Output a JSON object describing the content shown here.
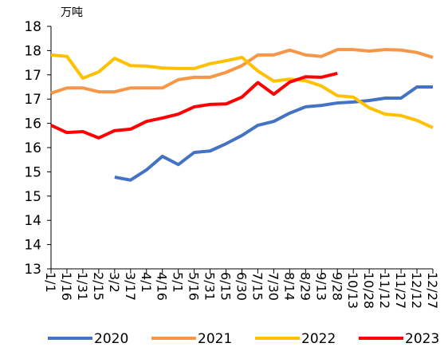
{
  "chart_data": {
    "type": "line",
    "unit_label": "万吨",
    "categories": [
      "1/1",
      "1/16",
      "1/31",
      "2/15",
      "3/2",
      "3/17",
      "4/1",
      "4/16",
      "5/1",
      "5/16",
      "5/31",
      "6/15",
      "6/30",
      "7/15",
      "7/30",
      "8/14",
      "8/29",
      "9/13",
      "9/28",
      "10/13",
      "10/28",
      "11/12",
      "11/27",
      "12/12",
      "12/27"
    ],
    "ylim": [
      13,
      18
    ],
    "yticks": [
      13,
      {
        "value": 13.5,
        "label": "14"
      },
      14,
      {
        "value": 14.5,
        "label": "15"
      },
      15,
      {
        "value": 15.5,
        "label": "16"
      },
      16,
      {
        "value": 16.5,
        "label": "17"
      },
      17,
      {
        "value": 17.5,
        "label": "18"
      },
      18
    ],
    "legend": "bottom",
    "series": [
      {
        "name": "2020",
        "color": "#4472c4",
        "values": [
          null,
          null,
          null,
          null,
          14.89,
          14.83,
          15.04,
          15.32,
          15.15,
          15.4,
          15.43,
          15.58,
          15.75,
          15.96,
          16.04,
          16.21,
          16.34,
          16.37,
          16.42,
          16.44,
          16.47,
          16.52,
          16.52,
          16.75,
          16.75
        ]
      },
      {
        "name": "2021",
        "color": "#f79646",
        "values": [
          16.62,
          16.73,
          16.73,
          16.65,
          16.65,
          16.73,
          16.73,
          16.73,
          16.9,
          16.95,
          16.95,
          17.05,
          17.19,
          17.41,
          17.41,
          17.51,
          17.41,
          17.38,
          17.52,
          17.52,
          17.49,
          17.52,
          17.51,
          17.46,
          17.36
        ]
      },
      {
        "name": "2022",
        "color": "#ffc000",
        "values": [
          17.41,
          17.38,
          16.93,
          17.06,
          17.34,
          17.19,
          17.18,
          17.14,
          17.13,
          17.13,
          17.23,
          17.29,
          17.36,
          17.08,
          16.87,
          16.91,
          16.88,
          16.77,
          16.57,
          16.54,
          16.32,
          16.19,
          16.16,
          16.06,
          15.91
        ]
      },
      {
        "name": "2023",
        "color": "#ff0000",
        "values": [
          15.96,
          15.81,
          15.83,
          15.7,
          15.85,
          15.88,
          16.04,
          16.11,
          16.19,
          16.34,
          16.39,
          16.4,
          16.54,
          16.84,
          16.6,
          16.85,
          16.96,
          16.95,
          17.03,
          null,
          null,
          null,
          null,
          null,
          null
        ]
      }
    ]
  }
}
